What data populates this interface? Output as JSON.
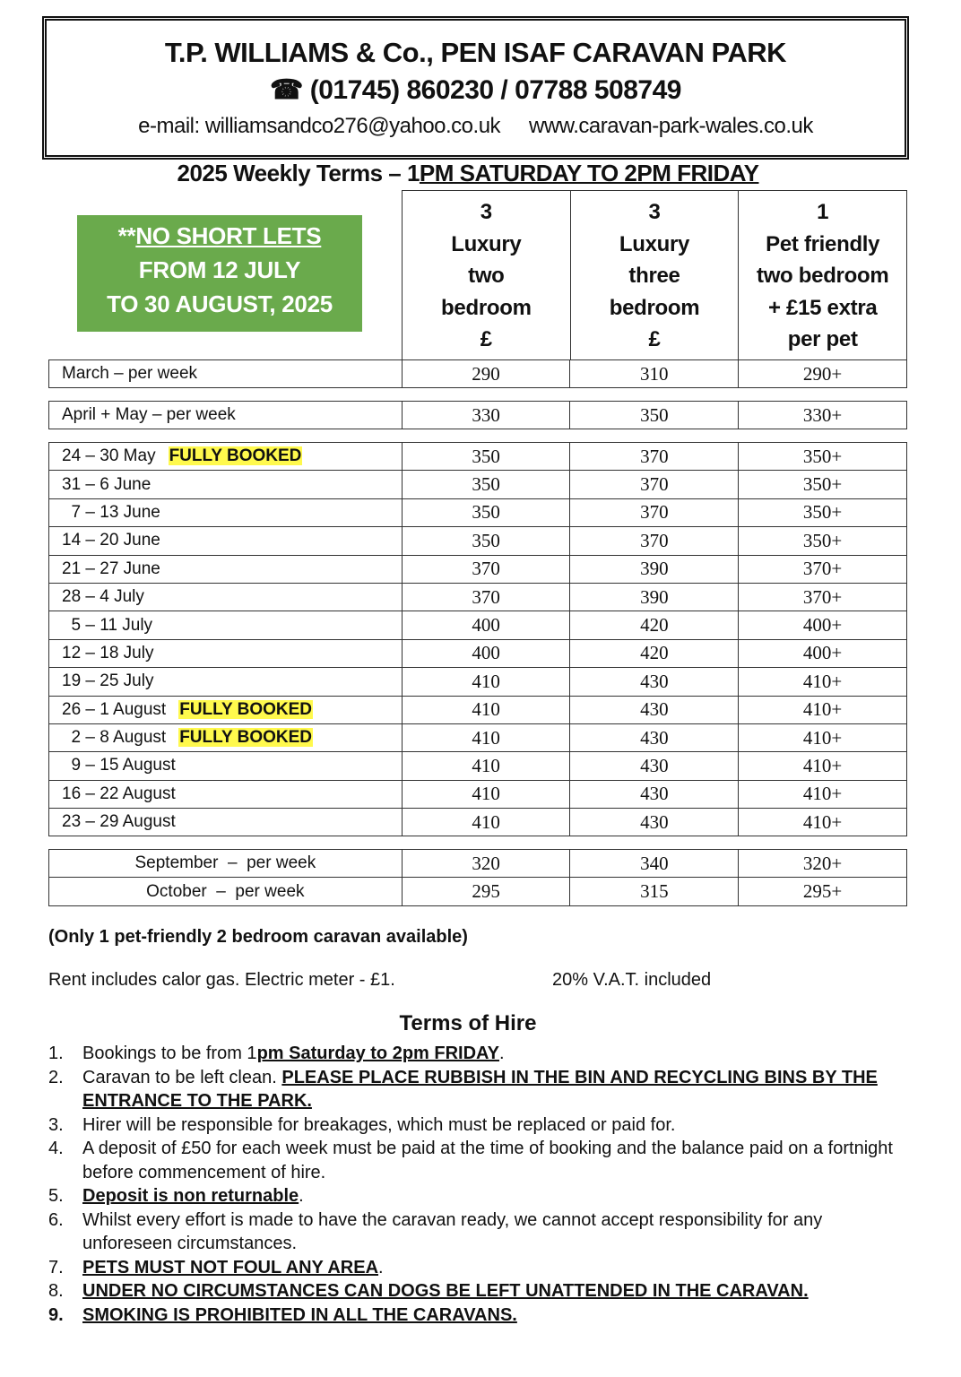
{
  "header": {
    "title": "T.P. WILLIAMS & Co., PEN ISAF CARAVAN PARK",
    "phone_icon": "telephone-icon",
    "phone": "(01745) 860230 / 07788 508749",
    "email": "e-mail: williamsandco276@yahoo.co.uk",
    "website": "www.caravan-park-wales.co.uk"
  },
  "terms_heading": {
    "prefix": "2025 Weekly Terms – 1",
    "underlined": "PM SATURDAY TO 2PM FRIDAY"
  },
  "notice": {
    "stars": "**",
    "line1": "NO SHORT LETS",
    "line2": "FROM 12 JULY",
    "line3": "TO 30 AUGUST, 2025",
    "color": "#6aaa4c"
  },
  "columns": [
    {
      "lines": [
        "3",
        "Luxury",
        "two",
        "bedroom",
        "£"
      ]
    },
    {
      "lines": [
        "3",
        "Luxury",
        "three",
        "bedroom",
        "£"
      ]
    },
    {
      "lines": [
        "1",
        "Pet friendly",
        "two bedroom",
        "+ £15 extra",
        "per pet"
      ]
    }
  ],
  "highlight_color": "#fff94d",
  "groups": [
    {
      "rows": [
        {
          "label": "March – per week",
          "values": [
            "290",
            "310",
            "290+"
          ]
        }
      ]
    },
    {
      "rows": [
        {
          "label": "April + May – per week",
          "values": [
            "330",
            "350",
            "330+"
          ]
        }
      ]
    },
    {
      "rows": [
        {
          "label": "24 – 30 May",
          "badge": "FULLY BOOKED",
          "values": [
            "350",
            "370",
            "350+"
          ]
        },
        {
          "label": "31 – 6 June",
          "values": [
            "350",
            "370",
            "350+"
          ]
        },
        {
          "label": "  7 – 13 June",
          "values": [
            "350",
            "370",
            "350+"
          ]
        },
        {
          "label": "14 – 20 June",
          "values": [
            "350",
            "370",
            "350+"
          ]
        },
        {
          "label": "21 – 27 June",
          "values": [
            "370",
            "390",
            "370+"
          ]
        },
        {
          "label": "28 – 4 July",
          "values": [
            "370",
            "390",
            "370+"
          ]
        },
        {
          "label": "  5 – 11 July",
          "values": [
            "400",
            "420",
            "400+"
          ]
        },
        {
          "label": "12 – 18 July",
          "values": [
            "400",
            "420",
            "400+"
          ]
        },
        {
          "label": "19 – 25 July",
          "values": [
            "410",
            "430",
            "410+"
          ]
        },
        {
          "label": "26 – 1 August",
          "badge": "FULLY BOOKED",
          "values": [
            "410",
            "430",
            "410+"
          ]
        },
        {
          "label": "  2 – 8 August",
          "badge": "FULLY BOOKED",
          "values": [
            "410",
            "430",
            "410+"
          ]
        },
        {
          "label": "  9 – 15 August",
          "values": [
            "410",
            "430",
            "410+"
          ]
        },
        {
          "label": "16 – 22 August",
          "values": [
            "410",
            "430",
            "410+"
          ]
        },
        {
          "label": "23 – 29 August",
          "values": [
            "410",
            "430",
            "410+"
          ]
        }
      ]
    },
    {
      "centered": true,
      "rows": [
        {
          "label": "September  –  per week",
          "values": [
            "320",
            "340",
            "320+"
          ]
        },
        {
          "label": "October  –  per week",
          "values": [
            "295",
            "315",
            "295+"
          ]
        }
      ]
    }
  ],
  "notes": {
    "availability": "(Only 1 pet-friendly 2 bedroom caravan available)",
    "rent": "Rent includes calor gas. Electric meter - £1.",
    "vat": "20% V.A.T. included"
  },
  "terms_of_hire": {
    "title": "Terms of Hire",
    "items": [
      {
        "n": "1.",
        "parts": [
          {
            "t": "Bookings to be from 1"
          },
          {
            "t": "pm Saturday to 2pm FRIDAY",
            "s": "bu"
          },
          {
            "t": "."
          }
        ]
      },
      {
        "n": "2.",
        "parts": [
          {
            "t": "Caravan to be left clean. "
          },
          {
            "t": "PLEASE PLACE RUBBISH IN THE BIN AND RECYCLING BINS BY THE ENTRANCE TO THE PARK.",
            "s": "bu"
          }
        ]
      },
      {
        "n": "3.",
        "parts": [
          {
            "t": "Hirer will be responsible for breakages, which must be replaced or paid for."
          }
        ]
      },
      {
        "n": "4.",
        "parts": [
          {
            "t": "A deposit of £50 for each week must be paid at the time of booking and the balance paid on a fortnight before commencement of hire."
          }
        ]
      },
      {
        "n": "5.",
        "parts": [
          {
            "t": "Deposit is non returnable",
            "s": "bu"
          },
          {
            "t": "."
          }
        ]
      },
      {
        "n": "6.",
        "parts": [
          {
            "t": "Whilst every effort is made to have the caravan ready, we cannot accept responsibility for any unforeseen circumstances."
          }
        ]
      },
      {
        "n": "7.",
        "parts": [
          {
            "t": "PETS MUST NOT FOUL ANY AREA",
            "s": "bu"
          },
          {
            "t": "."
          }
        ]
      },
      {
        "n": "8.",
        "parts": [
          {
            "t": "UNDER NO CIRCUMSTANCES CAN DOGS BE LEFT UNATTENDED IN THE CARAVAN.",
            "s": "bu"
          }
        ]
      },
      {
        "n": "9.",
        "nb": true,
        "parts": [
          {
            "t": "SMOKING IS PROHIBITED IN ALL THE CARAVANS.",
            "s": "bu"
          }
        ]
      }
    ]
  }
}
